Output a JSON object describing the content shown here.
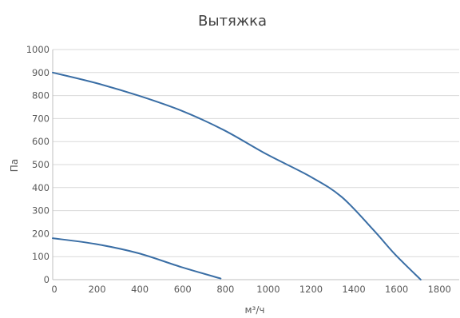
{
  "chart_data": {
    "type": "line",
    "title": "Вытяжка",
    "xlabel": "м³/ч",
    "ylabel": "Па",
    "xlim": [
      0,
      1900
    ],
    "ylim": [
      0,
      1000
    ],
    "xticks": [
      0,
      200,
      400,
      600,
      800,
      1000,
      1200,
      1400,
      1600,
      1800
    ],
    "yticks": [
      0,
      100,
      200,
      300,
      400,
      500,
      600,
      700,
      800,
      900,
      1000
    ],
    "grid": "horizontal",
    "legend": "none",
    "line_color": "#3a6ea5",
    "series": [
      {
        "x": [
          0,
          200,
          400,
          600,
          800,
          1000,
          1200,
          1350,
          1500,
          1600,
          1720
        ],
        "y": [
          900,
          855,
          800,
          735,
          650,
          545,
          450,
          360,
          215,
          110,
          0
        ]
      },
      {
        "x": [
          0,
          200,
          400,
          600,
          785
        ],
        "y": [
          180,
          155,
          115,
          55,
          5
        ]
      }
    ]
  }
}
